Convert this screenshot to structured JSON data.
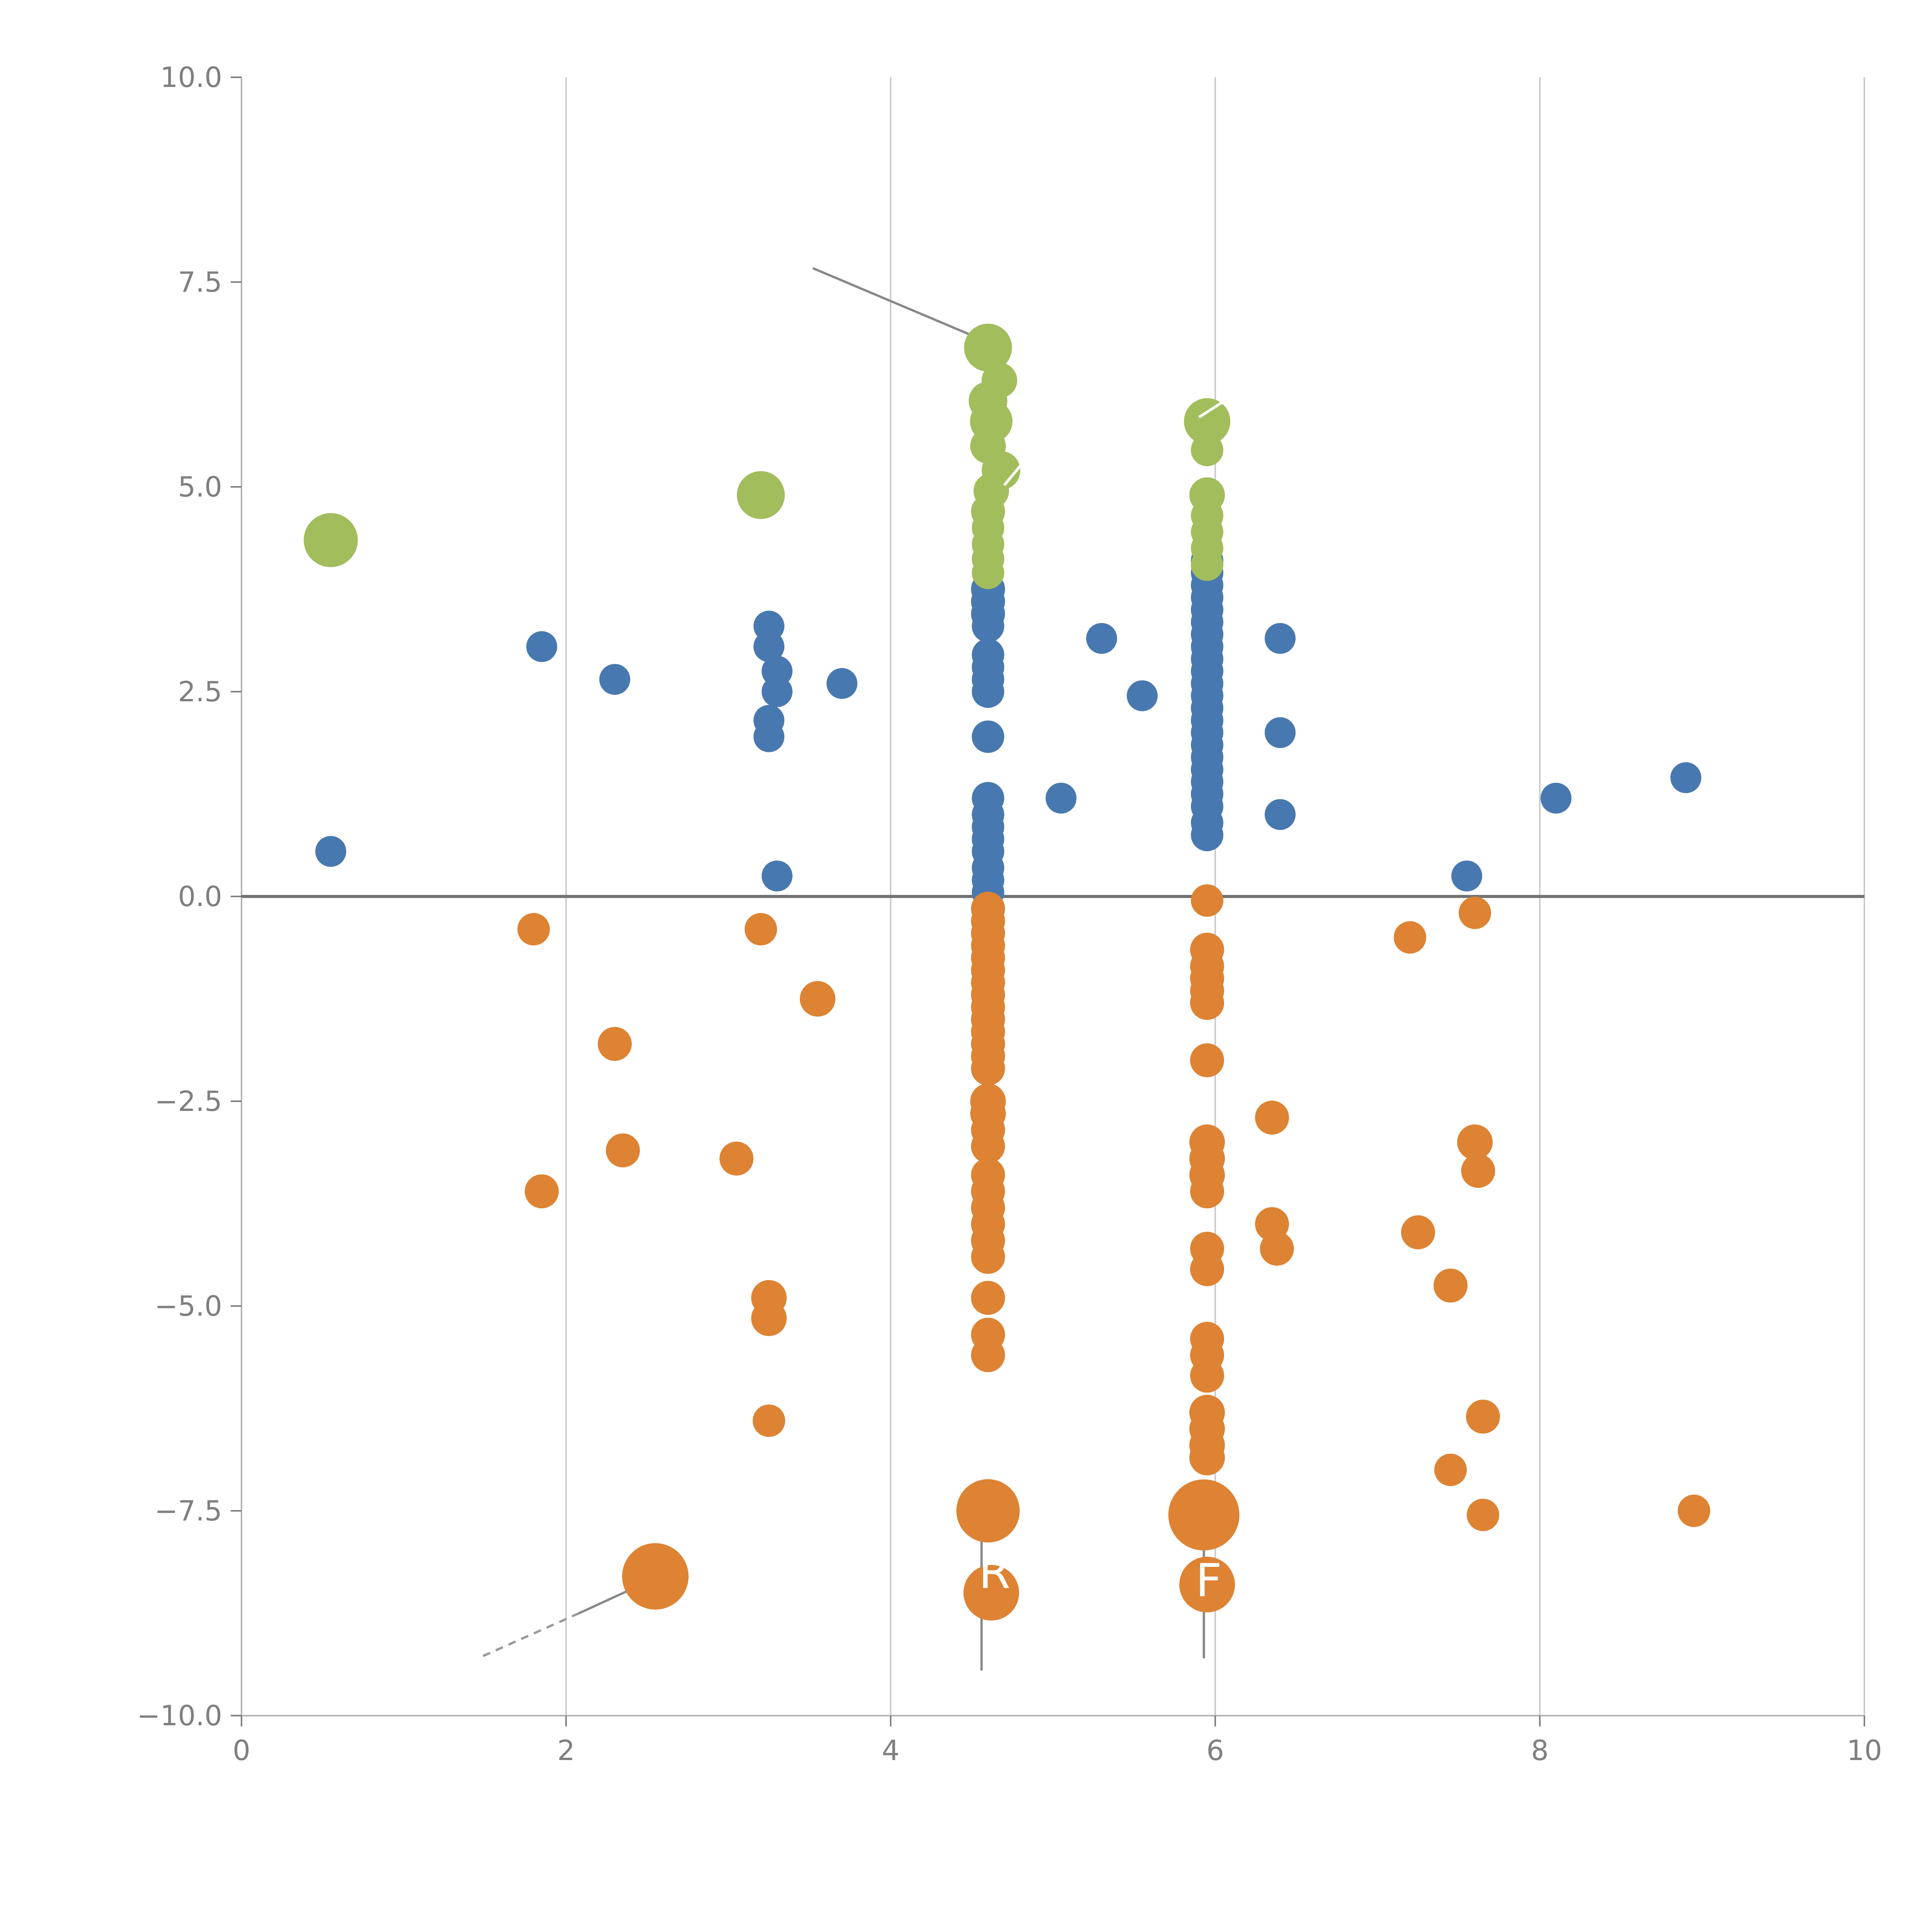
{
  "chart_data": {
    "type": "scatter",
    "title": "",
    "xlabel": "",
    "ylabel": "",
    "xlim": [
      0,
      10
    ],
    "ylim": [
      -10,
      10
    ],
    "grid": {
      "vertical_x": [
        2,
        4,
        6,
        8,
        10
      ]
    },
    "zero_line_y": 0,
    "x_ticks": [
      {
        "value": 0,
        "label": "0"
      },
      {
        "value": 2,
        "label": "2"
      },
      {
        "value": 4,
        "label": "4"
      },
      {
        "value": 6,
        "label": "6"
      },
      {
        "value": 8,
        "label": "8"
      },
      {
        "value": 10,
        "label": "10"
      }
    ],
    "y_ticks": [
      {
        "value": 10,
        "label": "10.0"
      },
      {
        "value": 7.5,
        "label": "7.5"
      },
      {
        "value": 5,
        "label": "5.0"
      },
      {
        "value": 2.5,
        "label": "2.5"
      },
      {
        "value": 0,
        "label": "0.0"
      },
      {
        "value": -2.5,
        "label": "−2.5"
      },
      {
        "value": -5,
        "label": "−5.0"
      },
      {
        "value": -7.5,
        "label": "−7.5"
      },
      {
        "value": -10,
        "label": "−10.0"
      }
    ],
    "colors": {
      "blue": "#4878b0",
      "orange": "#dd8333",
      "green": "#a2bd5c",
      "grid": "#cbcbcb",
      "spine": "#b3b3b3",
      "zero_line": "#737373",
      "tick_text": "#7f7f7f",
      "annotation": "#888888",
      "label_text": "#ffffff"
    },
    "series": [
      {
        "name": "blue",
        "color": "#4878b0",
        "points": [
          {
            "x": 0.55,
            "y": 0.55,
            "r": 40
          },
          {
            "x": 1.85,
            "y": 3.05,
            "r": 40
          },
          {
            "x": 2.3,
            "y": 2.65,
            "r": 40
          },
          {
            "x": 3.25,
            "y": 3.3,
            "r": 40
          },
          {
            "x": 3.25,
            "y": 3.05,
            "r": 40
          },
          {
            "x": 3.3,
            "y": 2.75,
            "r": 40
          },
          {
            "x": 3.3,
            "y": 2.5,
            "r": 40
          },
          {
            "x": 3.25,
            "y": 2.15,
            "r": 40
          },
          {
            "x": 3.25,
            "y": 1.95,
            "r": 40
          },
          {
            "x": 3.7,
            "y": 2.6,
            "r": 40
          },
          {
            "x": 3.3,
            "y": 0.25,
            "r": 40
          },
          {
            "x": 4.6,
            "y": 3.75,
            "r": 44
          },
          {
            "x": 4.6,
            "y": 3.6,
            "r": 44
          },
          {
            "x": 4.6,
            "y": 3.45,
            "r": 44
          },
          {
            "x": 4.6,
            "y": 3.3,
            "r": 42
          },
          {
            "x": 4.6,
            "y": 2.95,
            "r": 42
          },
          {
            "x": 4.6,
            "y": 2.8,
            "r": 42
          },
          {
            "x": 4.6,
            "y": 2.65,
            "r": 42
          },
          {
            "x": 4.6,
            "y": 2.5,
            "r": 42
          },
          {
            "x": 4.6,
            "y": 1.95,
            "r": 42
          },
          {
            "x": 4.6,
            "y": 1.2,
            "r": 42
          },
          {
            "x": 4.6,
            "y": 1.0,
            "r": 42
          },
          {
            "x": 4.6,
            "y": 0.85,
            "r": 42
          },
          {
            "x": 4.6,
            "y": 0.7,
            "r": 42
          },
          {
            "x": 4.6,
            "y": 0.55,
            "r": 42
          },
          {
            "x": 4.6,
            "y": 0.35,
            "r": 42
          },
          {
            "x": 4.6,
            "y": 0.2,
            "r": 42
          },
          {
            "x": 4.6,
            "y": 0.05,
            "r": 42
          },
          {
            "x": 5.05,
            "y": 1.2,
            "r": 40
          },
          {
            "x": 5.3,
            "y": 3.15,
            "r": 40
          },
          {
            "x": 5.55,
            "y": 2.45,
            "r": 40
          },
          {
            "x": 5.95,
            "y": 4.1,
            "r": 42
          },
          {
            "x": 5.95,
            "y": 3.95,
            "r": 42
          },
          {
            "x": 5.95,
            "y": 3.8,
            "r": 42
          },
          {
            "x": 5.95,
            "y": 3.65,
            "r": 42
          },
          {
            "x": 5.95,
            "y": 3.5,
            "r": 42
          },
          {
            "x": 5.95,
            "y": 3.35,
            "r": 42
          },
          {
            "x": 5.95,
            "y": 3.2,
            "r": 42
          },
          {
            "x": 5.95,
            "y": 3.05,
            "r": 42
          },
          {
            "x": 5.95,
            "y": 2.9,
            "r": 42
          },
          {
            "x": 5.95,
            "y": 2.75,
            "r": 42
          },
          {
            "x": 5.95,
            "y": 2.6,
            "r": 42
          },
          {
            "x": 5.95,
            "y": 2.45,
            "r": 42
          },
          {
            "x": 5.95,
            "y": 2.3,
            "r": 42
          },
          {
            "x": 5.95,
            "y": 2.15,
            "r": 42
          },
          {
            "x": 5.95,
            "y": 2.0,
            "r": 42
          },
          {
            "x": 5.95,
            "y": 1.85,
            "r": 42
          },
          {
            "x": 5.95,
            "y": 1.7,
            "r": 42
          },
          {
            "x": 5.95,
            "y": 1.55,
            "r": 42
          },
          {
            "x": 5.95,
            "y": 1.4,
            "r": 42
          },
          {
            "x": 5.95,
            "y": 1.25,
            "r": 42
          },
          {
            "x": 5.95,
            "y": 1.1,
            "r": 42
          },
          {
            "x": 5.95,
            "y": 0.9,
            "r": 42
          },
          {
            "x": 5.95,
            "y": 0.75,
            "r": 42
          },
          {
            "x": 6.4,
            "y": 3.15,
            "r": 40
          },
          {
            "x": 6.4,
            "y": 2.0,
            "r": 40
          },
          {
            "x": 6.4,
            "y": 1.0,
            "r": 40
          },
          {
            "x": 7.55,
            "y": 0.25,
            "r": 40
          },
          {
            "x": 8.1,
            "y": 1.2,
            "r": 40
          },
          {
            "x": 8.9,
            "y": 1.45,
            "r": 40
          }
        ]
      },
      {
        "name": "orange",
        "color": "#dd8333",
        "points": [
          {
            "x": 1.8,
            "y": -0.4,
            "r": 42
          },
          {
            "x": 1.85,
            "y": -3.6,
            "r": 44
          },
          {
            "x": 2.3,
            "y": -1.8,
            "r": 44
          },
          {
            "x": 2.35,
            "y": -3.1,
            "r": 44
          },
          {
            "x": 2.55,
            "y": -8.3,
            "r": 86
          },
          {
            "x": 3.05,
            "y": -3.2,
            "r": 44
          },
          {
            "x": 3.2,
            "y": -0.4,
            "r": 42
          },
          {
            "x": 3.25,
            "y": -4.9,
            "r": 46
          },
          {
            "x": 3.25,
            "y": -5.15,
            "r": 46
          },
          {
            "x": 3.25,
            "y": -6.4,
            "r": 42
          },
          {
            "x": 3.55,
            "y": -1.25,
            "r": 46
          },
          {
            "x": 4.6,
            "y": -0.15,
            "r": 44
          },
          {
            "x": 4.6,
            "y": -0.3,
            "r": 44
          },
          {
            "x": 4.6,
            "y": -0.45,
            "r": 44
          },
          {
            "x": 4.6,
            "y": -0.6,
            "r": 44
          },
          {
            "x": 4.6,
            "y": -0.75,
            "r": 44
          },
          {
            "x": 4.6,
            "y": -0.9,
            "r": 44
          },
          {
            "x": 4.6,
            "y": -1.05,
            "r": 44
          },
          {
            "x": 4.6,
            "y": -1.2,
            "r": 44
          },
          {
            "x": 4.6,
            "y": -1.35,
            "r": 44
          },
          {
            "x": 4.6,
            "y": -1.5,
            "r": 44
          },
          {
            "x": 4.6,
            "y": -1.65,
            "r": 44
          },
          {
            "x": 4.6,
            "y": -1.8,
            "r": 44
          },
          {
            "x": 4.6,
            "y": -1.95,
            "r": 44
          },
          {
            "x": 4.6,
            "y": -2.1,
            "r": 44
          },
          {
            "x": 4.6,
            "y": -2.5,
            "r": 46
          },
          {
            "x": 4.6,
            "y": -2.65,
            "r": 46
          },
          {
            "x": 4.6,
            "y": -2.85,
            "r": 44
          },
          {
            "x": 4.6,
            "y": -3.05,
            "r": 44
          },
          {
            "x": 4.6,
            "y": -3.4,
            "r": 44
          },
          {
            "x": 4.6,
            "y": -3.6,
            "r": 44
          },
          {
            "x": 4.6,
            "y": -3.8,
            "r": 44
          },
          {
            "x": 4.6,
            "y": -4.0,
            "r": 44
          },
          {
            "x": 4.6,
            "y": -4.2,
            "r": 44
          },
          {
            "x": 4.6,
            "y": -4.4,
            "r": 44
          },
          {
            "x": 4.6,
            "y": -4.9,
            "r": 44
          },
          {
            "x": 4.6,
            "y": -5.35,
            "r": 44
          },
          {
            "x": 4.6,
            "y": -5.6,
            "r": 44
          },
          {
            "x": 4.6,
            "y": -7.5,
            "r": 82
          },
          {
            "x": 4.62,
            "y": -8.5,
            "r": 72
          },
          {
            "x": 5.95,
            "y": -0.05,
            "r": 42
          },
          {
            "x": 5.95,
            "y": -0.65,
            "r": 44
          },
          {
            "x": 5.95,
            "y": -0.85,
            "r": 44
          },
          {
            "x": 5.95,
            "y": -1.0,
            "r": 44
          },
          {
            "x": 5.95,
            "y": -1.15,
            "r": 44
          },
          {
            "x": 5.95,
            "y": -1.3,
            "r": 44
          },
          {
            "x": 5.95,
            "y": -2.0,
            "r": 44
          },
          {
            "x": 5.95,
            "y": -3.0,
            "r": 46
          },
          {
            "x": 5.95,
            "y": -3.2,
            "r": 46
          },
          {
            "x": 5.95,
            "y": -3.4,
            "r": 46
          },
          {
            "x": 5.95,
            "y": -3.6,
            "r": 44
          },
          {
            "x": 5.95,
            "y": -4.3,
            "r": 44
          },
          {
            "x": 5.95,
            "y": -4.55,
            "r": 44
          },
          {
            "x": 5.95,
            "y": -5.4,
            "r": 44
          },
          {
            "x": 5.95,
            "y": -5.6,
            "r": 44
          },
          {
            "x": 5.95,
            "y": -5.85,
            "r": 44
          },
          {
            "x": 5.95,
            "y": -6.3,
            "r": 46
          },
          {
            "x": 5.95,
            "y": -6.5,
            "r": 46
          },
          {
            "x": 5.95,
            "y": -6.7,
            "r": 46
          },
          {
            "x": 5.95,
            "y": -6.85,
            "r": 46
          },
          {
            "x": 5.93,
            "y": -7.55,
            "r": 92
          },
          {
            "x": 5.95,
            "y": -8.4,
            "r": 72
          },
          {
            "x": 6.35,
            "y": -2.7,
            "r": 44
          },
          {
            "x": 6.35,
            "y": -4.0,
            "r": 44
          },
          {
            "x": 6.38,
            "y": -4.3,
            "r": 44
          },
          {
            "x": 7.2,
            "y": -0.5,
            "r": 42
          },
          {
            "x": 7.25,
            "y": -4.1,
            "r": 44
          },
          {
            "x": 7.45,
            "y": -4.75,
            "r": 44
          },
          {
            "x": 7.6,
            "y": -3.0,
            "r": 46
          },
          {
            "x": 7.62,
            "y": -3.35,
            "r": 44
          },
          {
            "x": 7.6,
            "y": -0.2,
            "r": 42
          },
          {
            "x": 7.45,
            "y": -7.0,
            "r": 42
          },
          {
            "x": 7.65,
            "y": -6.35,
            "r": 44
          },
          {
            "x": 7.65,
            "y": -7.55,
            "r": 42
          },
          {
            "x": 8.95,
            "y": -7.5,
            "r": 42
          }
        ]
      },
      {
        "name": "green",
        "color": "#a2bd5c",
        "points": [
          {
            "x": 0.55,
            "y": 4.35,
            "r": 70
          },
          {
            "x": 3.2,
            "y": 4.9,
            "r": 62
          },
          {
            "x": 4.6,
            "y": 6.7,
            "r": 62
          },
          {
            "x": 4.67,
            "y": 6.3,
            "r": 46
          },
          {
            "x": 4.6,
            "y": 6.05,
            "r": 50
          },
          {
            "x": 4.62,
            "y": 5.8,
            "r": 55
          },
          {
            "x": 4.6,
            "y": 5.5,
            "r": 46
          },
          {
            "x": 4.68,
            "y": 5.2,
            "r": 50
          },
          {
            "x": 4.62,
            "y": 4.95,
            "r": 46
          },
          {
            "x": 4.6,
            "y": 4.7,
            "r": 44
          },
          {
            "x": 4.6,
            "y": 4.5,
            "r": 42
          },
          {
            "x": 4.6,
            "y": 4.3,
            "r": 42
          },
          {
            "x": 4.6,
            "y": 4.12,
            "r": 42
          },
          {
            "x": 4.6,
            "y": 3.95,
            "r": 42
          },
          {
            "x": 5.95,
            "y": 5.8,
            "r": 60
          },
          {
            "x": 5.95,
            "y": 5.45,
            "r": 42
          },
          {
            "x": 5.95,
            "y": 4.9,
            "r": 46
          },
          {
            "x": 5.95,
            "y": 4.65,
            "r": 42
          },
          {
            "x": 5.95,
            "y": 4.45,
            "r": 42
          },
          {
            "x": 5.95,
            "y": 4.25,
            "r": 42
          },
          {
            "x": 5.95,
            "y": 4.05,
            "r": 42
          }
        ]
      }
    ],
    "annotation_lines": [
      {
        "x1": 3.52,
        "y1": 7.67,
        "x2": 4.5,
        "y2": 6.85,
        "color": "#888888",
        "width": 6,
        "dash": null,
        "layer": "back"
      },
      {
        "x1": 2.52,
        "y1": -8.35,
        "x2": 2.08,
        "y2": -8.75,
        "color": "#888888",
        "width": 6,
        "dash": null,
        "layer": "back"
      },
      {
        "x1": 2.08,
        "y1": -8.75,
        "x2": 1.48,
        "y2": -9.28,
        "color": "#999999",
        "width": 6,
        "dash": "20 16",
        "layer": "back"
      },
      {
        "x1": 4.56,
        "y1": -7.35,
        "x2": 4.56,
        "y2": -9.45,
        "color": "#888888",
        "width": 6,
        "dash": null,
        "layer": "back"
      },
      {
        "x1": 5.93,
        "y1": -7.3,
        "x2": 5.93,
        "y2": -9.3,
        "color": "#888888",
        "width": 6,
        "dash": null,
        "layer": "back"
      },
      {
        "x1": 4.7,
        "y1": 5.02,
        "x2": 4.85,
        "y2": 5.38,
        "color": "#ffffff",
        "width": 7,
        "dash": null,
        "layer": "front"
      },
      {
        "x1": 5.9,
        "y1": 5.85,
        "x2": 6.08,
        "y2": 6.08,
        "color": "#ffffff",
        "width": 7,
        "dash": null,
        "layer": "front"
      },
      {
        "x1": 4.42,
        "y1": 5.62,
        "x2": 4.52,
        "y2": 5.62,
        "color": "#ffffff",
        "width": 6,
        "dash": "12 10",
        "layer": "front"
      }
    ],
    "annotation_labels": [
      {
        "text": "R",
        "x": 4.64,
        "y": -8.25,
        "color": "#ffffff",
        "size": 118
      },
      {
        "text": "F",
        "x": 5.96,
        "y": -8.35,
        "color": "#ffffff",
        "size": 118
      }
    ]
  }
}
